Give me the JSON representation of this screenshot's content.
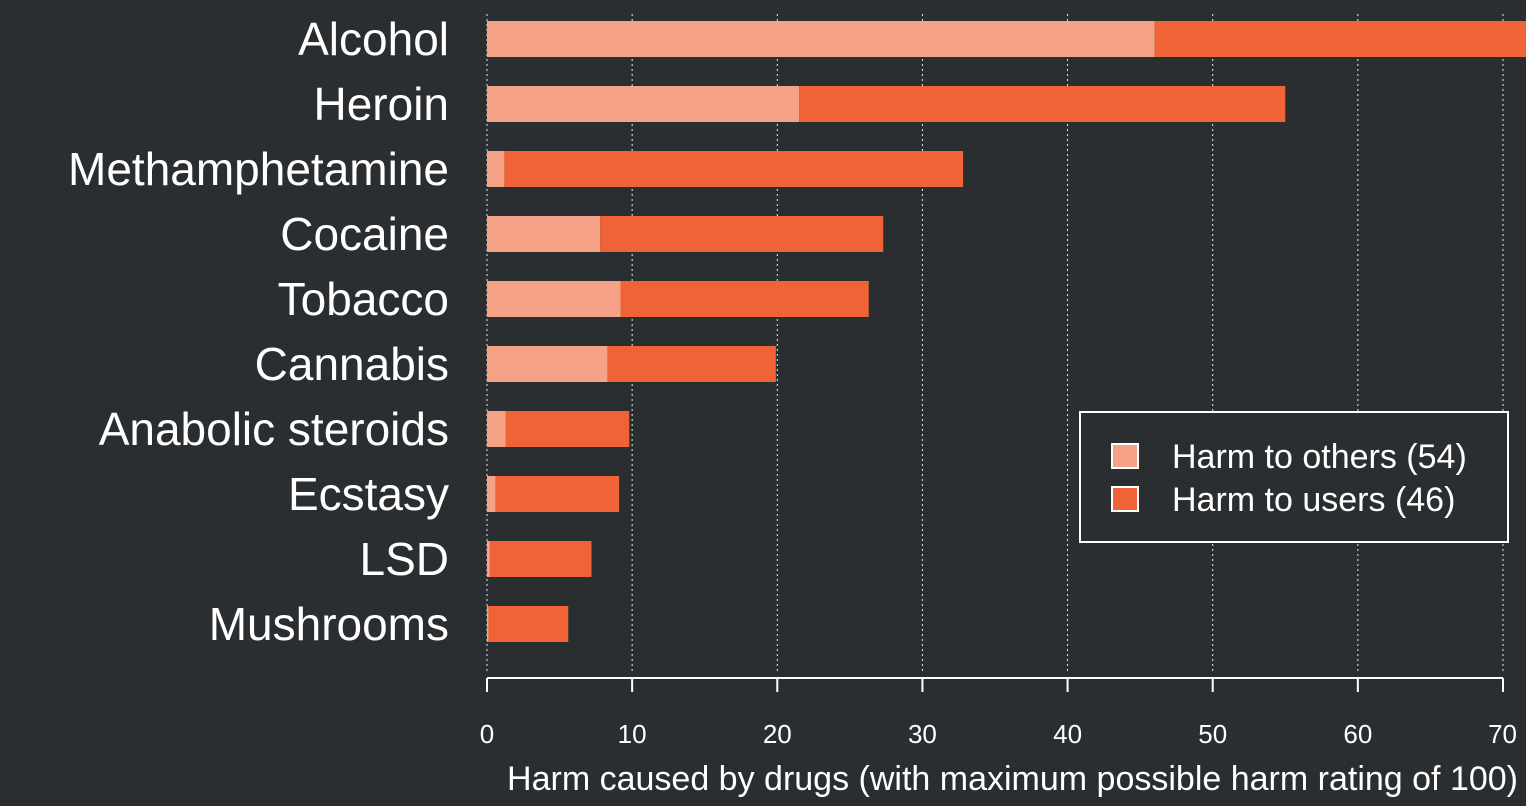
{
  "chart_data": {
    "type": "bar",
    "orientation": "horizontal",
    "stacked": true,
    "categories": [
      "Alcohol",
      "Heroin",
      "Methamphetamine",
      "Cocaine",
      "Tobacco",
      "Cannabis",
      "Anabolic steroids",
      "Ecstasy",
      "LSD",
      "Mushrooms"
    ],
    "series": [
      {
        "name": "Harm to others (54)",
        "color": "#f5a286",
        "values": [
          46,
          21.5,
          1.2,
          7.8,
          9.2,
          8.3,
          1.3,
          0.6,
          0.2,
          0.1
        ]
      },
      {
        "name": "Harm to users (46)",
        "color": "#ef6337",
        "values": [
          26,
          33.5,
          31.6,
          19.5,
          17.1,
          11.6,
          8.5,
          8.5,
          7.0,
          5.5
        ]
      }
    ],
    "xlabel": "Harm caused by drugs (with maximum possible harm rating of 100)",
    "xlim": [
      0,
      70
    ],
    "xticks": [
      0,
      10,
      20,
      30,
      40,
      50,
      60,
      70
    ],
    "grid": "vertical dotted",
    "legend_position": "right",
    "background": "#2a2e31"
  }
}
